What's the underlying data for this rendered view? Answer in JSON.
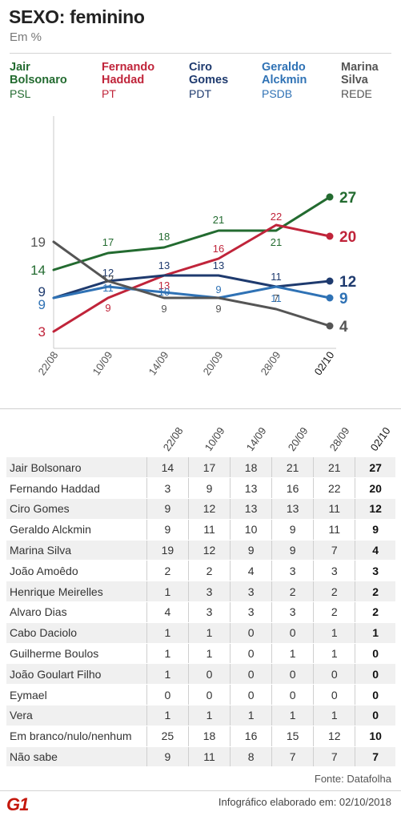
{
  "title": "SEXO: feminino",
  "subtitle": "Em %",
  "legend": [
    {
      "name_line1": "Jair",
      "name_line2": "Bolsonaro",
      "party": "PSL",
      "color": "#236b30"
    },
    {
      "name_line1": "Fernando",
      "name_line2": "Haddad",
      "party": "PT",
      "color": "#c0243a"
    },
    {
      "name_line1": "Ciro",
      "name_line2": "Gomes",
      "party": "PDT",
      "color": "#1e3a6e"
    },
    {
      "name_line1": "Geraldo",
      "name_line2": "Alckmin",
      "party": "PSDB",
      "color": "#2f72b5"
    },
    {
      "name_line1": "Marina",
      "name_line2": "Silva",
      "party": "REDE",
      "color": "#555555"
    }
  ],
  "chart_data": {
    "type": "line",
    "x": [
      "22/08",
      "10/09",
      "14/09",
      "20/09",
      "28/09",
      "02/10"
    ],
    "ylim": [
      0,
      30
    ],
    "grid": false,
    "series": [
      {
        "name": "Jair Bolsonaro",
        "color": "#236b30",
        "values": [
          14,
          17,
          18,
          21,
          21,
          27
        ]
      },
      {
        "name": "Fernando Haddad",
        "color": "#c0243a",
        "values": [
          3,
          9,
          13,
          16,
          22,
          20
        ]
      },
      {
        "name": "Ciro Gomes",
        "color": "#1e3a6e",
        "values": [
          9,
          12,
          13,
          13,
          11,
          12
        ]
      },
      {
        "name": "Geraldo Alckmin",
        "color": "#2f72b5",
        "values": [
          9,
          11,
          10,
          9,
          11,
          9
        ]
      },
      {
        "name": "Marina Silva",
        "color": "#555555",
        "values": [
          19,
          12,
          9,
          9,
          7,
          4
        ]
      }
    ]
  },
  "table": {
    "columns": [
      "22/08",
      "10/09",
      "14/09",
      "20/09",
      "28/09",
      "02/10"
    ],
    "rows": [
      {
        "name": "Jair Bolsonaro",
        "values": [
          "14",
          "17",
          "18",
          "21",
          "21",
          "27"
        ]
      },
      {
        "name": "Fernando Haddad",
        "values": [
          "3",
          "9",
          "13",
          "16",
          "22",
          "20"
        ]
      },
      {
        "name": "Ciro Gomes",
        "values": [
          "9",
          "12",
          "13",
          "13",
          "11",
          "12"
        ]
      },
      {
        "name": "Geraldo Alckmin",
        "values": [
          "9",
          "11",
          "10",
          "9",
          "11",
          "9"
        ]
      },
      {
        "name": "Marina Silva",
        "values": [
          "19",
          "12",
          "9",
          "9",
          "7",
          "4"
        ]
      },
      {
        "name": "João Amoêdo",
        "values": [
          "2",
          "2",
          "4",
          "3",
          "3",
          "3"
        ]
      },
      {
        "name": "Henrique Meirelles",
        "values": [
          "1",
          "3",
          "3",
          "2",
          "2",
          "2"
        ]
      },
      {
        "name": "Alvaro Dias",
        "values": [
          "4",
          "3",
          "3",
          "3",
          "2",
          "2"
        ]
      },
      {
        "name": "Cabo Daciolo",
        "values": [
          "1",
          "1",
          "0",
          "0",
          "1",
          "1"
        ]
      },
      {
        "name": "Guilherme Boulos",
        "values": [
          "1",
          "1",
          "0",
          "1",
          "1",
          "0"
        ]
      },
      {
        "name": "João Goulart Filho",
        "values": [
          "1",
          "0",
          "0",
          "0",
          "0",
          "0"
        ]
      },
      {
        "name": "Eymael",
        "values": [
          "0",
          "0",
          "0",
          "0",
          "0",
          "0"
        ]
      },
      {
        "name": "Vera",
        "values": [
          "1",
          "1",
          "1",
          "1",
          "1",
          "0"
        ]
      },
      {
        "name": "Em branco/nulo/nenhum",
        "values": [
          "25",
          "18",
          "16",
          "15",
          "12",
          "10"
        ]
      },
      {
        "name": "Não sabe",
        "values": [
          "9",
          "11",
          "8",
          "7",
          "7",
          "7"
        ]
      }
    ]
  },
  "source": "Fonte: Datafolha",
  "logo": "G1",
  "footer": "Infográfico elaborado em: 02/10/2018"
}
